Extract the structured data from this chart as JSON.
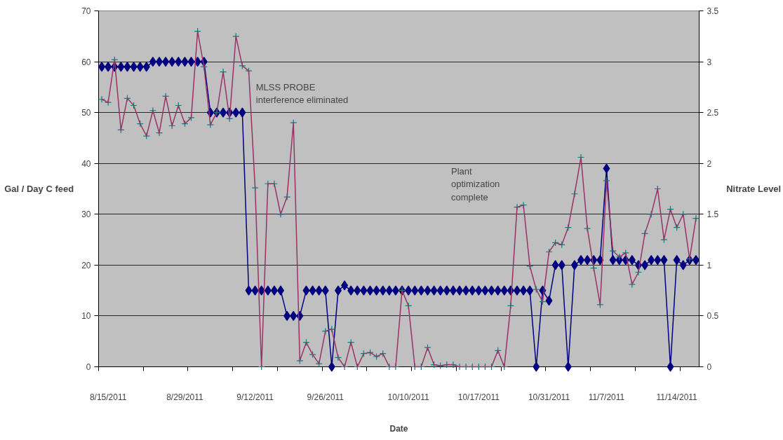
{
  "chart_data": {
    "type": "line",
    "xlabel": "Date",
    "ylabel": "Gal / Day C feed",
    "y2label": "Nitrate Level",
    "categories": [
      null,
      "8/15/2011",
      null,
      null,
      null,
      null,
      null,
      null,
      null,
      null,
      null,
      null,
      null,
      "8/29/2011",
      null,
      null,
      null,
      null,
      null,
      null,
      null,
      null,
      null,
      null,
      "9/12/2011",
      null,
      null,
      null,
      null,
      null,
      null,
      null,
      null,
      null,
      null,
      "9/26/2011",
      null,
      null,
      null,
      null,
      null,
      null,
      null,
      null,
      null,
      null,
      null,
      null,
      "10/10/2011",
      null,
      null,
      null,
      null,
      null,
      null,
      null,
      null,
      null,
      null,
      "10/17/2011",
      null,
      null,
      null,
      null,
      null,
      null,
      null,
      null,
      null,
      null,
      "10/31/2011",
      null,
      null,
      null,
      null,
      null,
      null,
      null,
      null,
      "11/7/2011",
      null,
      null,
      null,
      null,
      null,
      null,
      null,
      null,
      null,
      null,
      "11/14/2011",
      null,
      null,
      null
    ],
    "series": [
      {
        "color": "#000080",
        "marker": "diamond",
        "values": [
          59,
          59,
          59,
          59,
          59,
          59,
          59,
          59,
          60,
          60,
          60,
          60,
          60,
          60,
          60,
          60,
          60,
          50,
          50,
          50,
          50,
          50,
          50,
          15,
          15,
          15,
          15,
          15,
          15,
          10,
          10,
          10,
          15,
          15,
          15,
          15,
          0,
          15,
          16,
          15,
          15,
          15,
          15,
          15,
          15,
          15,
          15,
          15,
          15,
          15,
          15,
          15,
          15,
          15,
          15,
          15,
          15,
          15,
          15,
          15,
          15,
          15,
          15,
          15,
          15,
          15,
          15,
          15,
          0,
          15,
          13,
          20,
          20,
          0,
          20,
          21,
          21,
          21,
          21,
          39,
          21,
          21,
          21,
          21,
          20,
          20,
          21,
          21,
          21,
          0,
          21,
          20,
          21,
          21
        ]
      },
      {
        "color": "#993366",
        "marker": "cross",
        "axis": "y2",
        "values": [
          2.63,
          2.6,
          3.02,
          2.33,
          2.64,
          2.57,
          2.39,
          2.27,
          2.52,
          2.3,
          2.66,
          2.37,
          2.57,
          2.39,
          2.45,
          3.3,
          2.95,
          2.38,
          2.5,
          2.9,
          2.44,
          3.25,
          2.96,
          2.91,
          1.76,
          0,
          1.8,
          1.8,
          1.5,
          1.67,
          2.4,
          0.06,
          0.24,
          0.12,
          0.03,
          0.35,
          0.37,
          0.09,
          0,
          0.24,
          0,
          0.13,
          0.14,
          0.1,
          0.13,
          0,
          0,
          0.75,
          0.6,
          0,
          0,
          0.19,
          0.02,
          0.01,
          0.02,
          0.02,
          0,
          0,
          0,
          0,
          0,
          0,
          0.16,
          0,
          0.6,
          1.57,
          1.59,
          0.99,
          0.76,
          0.64,
          1.13,
          1.22,
          1.2,
          1.37,
          1.7,
          2.06,
          1.36,
          0.97,
          0.61,
          1.83,
          1.14,
          1.08,
          1.12,
          0.81,
          0.93,
          1.31,
          1.5,
          1.75,
          1.25,
          1.55,
          1.37,
          1.5,
          1.06,
          1.46
        ]
      }
    ],
    "ylim": [
      0,
      70
    ],
    "yticks": [
      0,
      10,
      20,
      30,
      40,
      50,
      60,
      70
    ],
    "y2lim": [
      0,
      3.5
    ],
    "y2ticks": [
      0,
      0.5,
      1,
      1.5,
      2,
      2.5,
      3,
      3.5
    ],
    "grid": "y",
    "line_style": "solid",
    "annotations": [
      "MLSS PROBE\ninterference eliminated",
      "Plant\noptimization\ncomplete"
    ]
  }
}
